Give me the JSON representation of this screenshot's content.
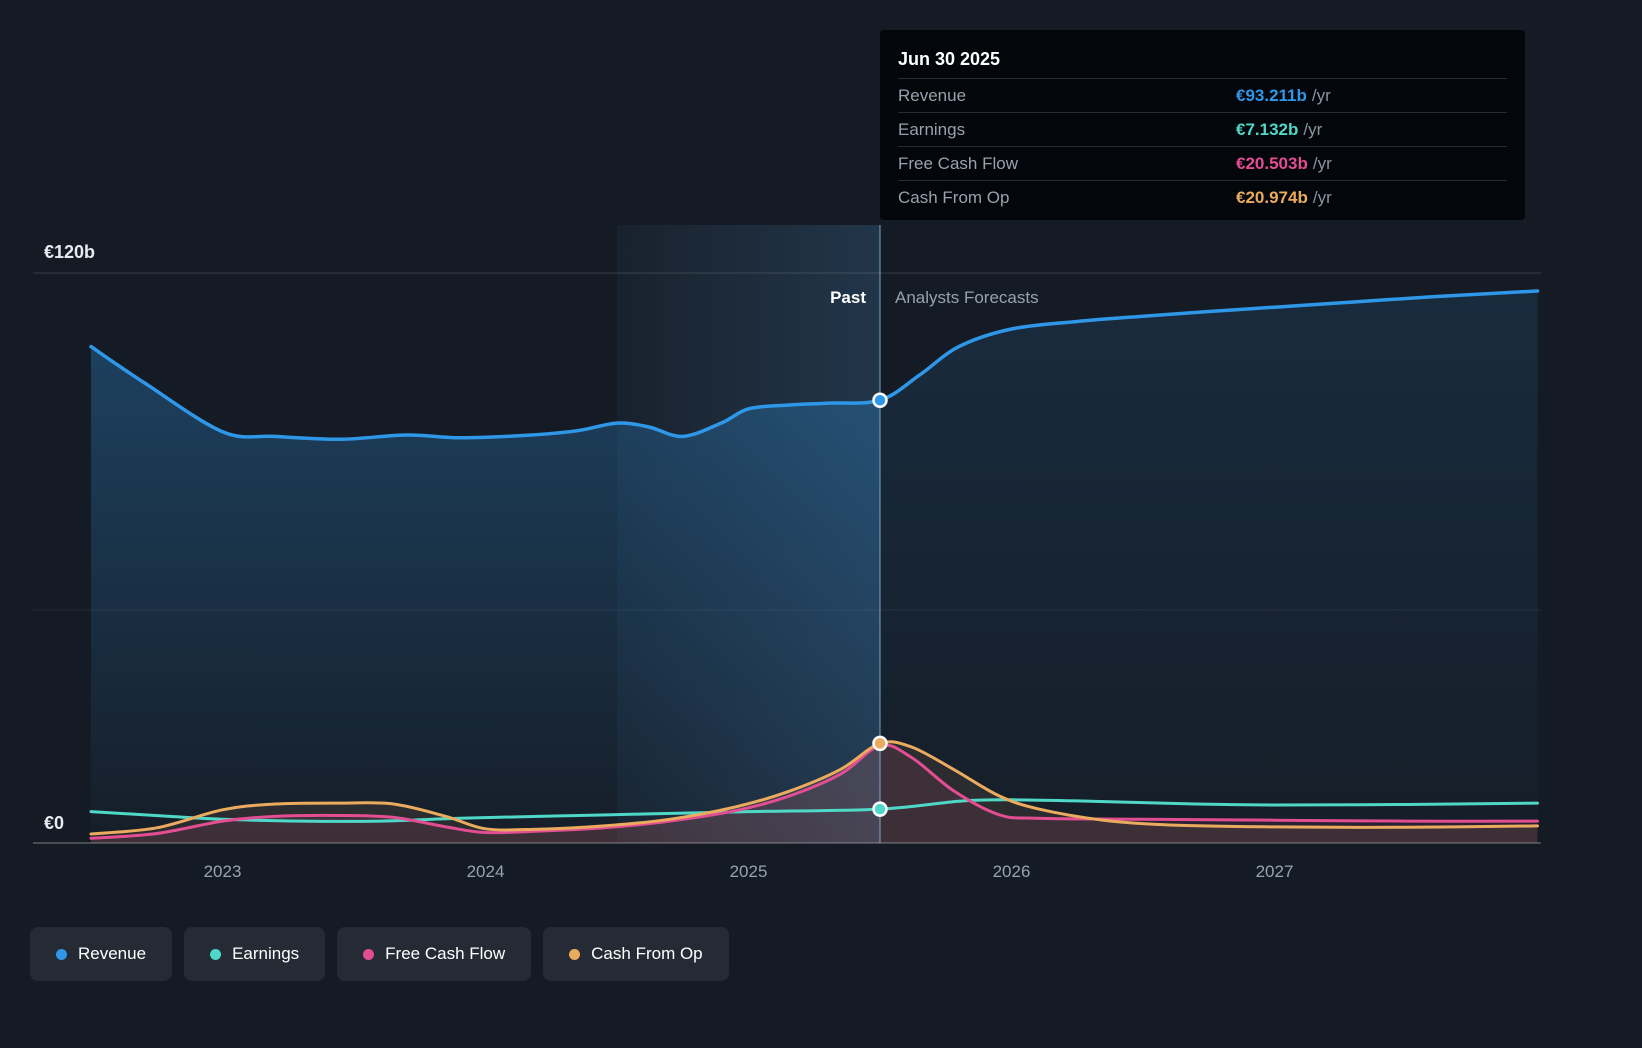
{
  "labels": {
    "y_max": "€120b",
    "y_zero": "€0",
    "past": "Past",
    "forecast": "Analysts Forecasts"
  },
  "x_axis": [
    "2023",
    "2024",
    "2025",
    "2026",
    "2027"
  ],
  "tooltip": {
    "date": "Jun 30 2025",
    "rows": [
      {
        "label": "Revenue",
        "value": "€93.211b",
        "suffix": "/yr",
        "color": "#2f97e8"
      },
      {
        "label": "Earnings",
        "value": "€7.132b",
        "suffix": "/yr",
        "color": "#4fd8c7"
      },
      {
        "label": "Free Cash Flow",
        "value": "€20.503b",
        "suffix": "/yr",
        "color": "#e34e92"
      },
      {
        "label": "Cash From Op",
        "value": "€20.974b",
        "suffix": "/yr",
        "color": "#ebab5e"
      }
    ]
  },
  "legend": [
    {
      "label": "Revenue",
      "color": "#2f97e8"
    },
    {
      "label": "Earnings",
      "color": "#4fd8c7"
    },
    {
      "label": "Free Cash Flow",
      "color": "#e34e92"
    },
    {
      "label": "Cash From Op",
      "color": "#ebab5e"
    }
  ],
  "chart_data": {
    "type": "area",
    "title": "Past performance and Analysts Forecasts (€ billions per year)",
    "x_unit": "year",
    "x_range": [
      2022.27,
      2028.0
    ],
    "y_range": [
      0,
      120
    ],
    "y_tick_labels": [
      "€120b",
      "€0"
    ],
    "grid": true,
    "divider": {
      "x": 2025.5,
      "date": "Jun 30 2025",
      "past_label": "Past",
      "forecast_label": "Analysts Forecasts",
      "highlight_band_start": 2024.5
    },
    "series": [
      {
        "name": "Revenue",
        "color": "#2f97e8",
        "unit": "€b/yr",
        "points": [
          [
            2022.5,
            104.5
          ],
          [
            2022.7,
            97.0
          ],
          [
            2023.0,
            86.6
          ],
          [
            2023.2,
            85.6
          ],
          [
            2023.45,
            85.0
          ],
          [
            2023.7,
            85.9
          ],
          [
            2023.9,
            85.3
          ],
          [
            2024.15,
            85.8
          ],
          [
            2024.35,
            86.8
          ],
          [
            2024.5,
            88.4
          ],
          [
            2024.62,
            87.6
          ],
          [
            2024.75,
            85.6
          ],
          [
            2024.9,
            88.5
          ],
          [
            2025.0,
            91.4
          ],
          [
            2025.15,
            92.2
          ],
          [
            2025.3,
            92.6
          ],
          [
            2025.5,
            93.211
          ],
          [
            2025.65,
            98.5
          ],
          [
            2025.8,
            104.5
          ],
          [
            2026.0,
            108.2
          ],
          [
            2026.25,
            109.8
          ],
          [
            2026.5,
            110.9
          ],
          [
            2026.75,
            111.9
          ],
          [
            2027.0,
            112.8
          ],
          [
            2027.3,
            113.9
          ],
          [
            2027.6,
            115.0
          ],
          [
            2028.0,
            116.2
          ]
        ]
      },
      {
        "name": "Earnings",
        "color": "#4fd8c7",
        "unit": "€b/yr",
        "points": [
          [
            2022.5,
            6.6
          ],
          [
            2022.8,
            5.6
          ],
          [
            2023.0,
            5.0
          ],
          [
            2023.3,
            4.6
          ],
          [
            2023.6,
            4.6
          ],
          [
            2023.9,
            5.2
          ],
          [
            2024.2,
            5.6
          ],
          [
            2024.6,
            6.1
          ],
          [
            2025.0,
            6.6
          ],
          [
            2025.5,
            7.132
          ],
          [
            2025.8,
            8.8
          ],
          [
            2026.0,
            9.1
          ],
          [
            2026.3,
            8.8
          ],
          [
            2026.7,
            8.2
          ],
          [
            2027.0,
            8.0
          ],
          [
            2027.5,
            8.1
          ],
          [
            2028.0,
            8.4
          ]
        ]
      },
      {
        "name": "Free Cash Flow",
        "color": "#e34e92",
        "unit": "€b/yr",
        "points": [
          [
            2022.5,
            1.0
          ],
          [
            2022.75,
            2.0
          ],
          [
            2023.0,
            4.6
          ],
          [
            2023.2,
            5.6
          ],
          [
            2023.45,
            5.8
          ],
          [
            2023.65,
            5.4
          ],
          [
            2023.85,
            3.4
          ],
          [
            2024.0,
            2.2
          ],
          [
            2024.2,
            2.5
          ],
          [
            2024.45,
            3.2
          ],
          [
            2024.7,
            4.6
          ],
          [
            2024.95,
            6.8
          ],
          [
            2025.15,
            9.8
          ],
          [
            2025.35,
            14.5
          ],
          [
            2025.5,
            20.503
          ],
          [
            2025.62,
            18.0
          ],
          [
            2025.78,
            11.0
          ],
          [
            2025.95,
            6.0
          ],
          [
            2026.1,
            5.2
          ],
          [
            2026.5,
            5.0
          ],
          [
            2027.0,
            4.8
          ],
          [
            2027.5,
            4.6
          ],
          [
            2028.0,
            4.6
          ]
        ]
      },
      {
        "name": "Cash From Op",
        "color": "#ebab5e",
        "unit": "€b/yr",
        "points": [
          [
            2022.5,
            1.9
          ],
          [
            2022.75,
            3.2
          ],
          [
            2023.0,
            7.0
          ],
          [
            2023.2,
            8.2
          ],
          [
            2023.45,
            8.4
          ],
          [
            2023.65,
            8.2
          ],
          [
            2023.85,
            5.6
          ],
          [
            2024.0,
            3.0
          ],
          [
            2024.2,
            2.9
          ],
          [
            2024.45,
            3.6
          ],
          [
            2024.7,
            5.0
          ],
          [
            2024.95,
            7.6
          ],
          [
            2025.15,
            10.8
          ],
          [
            2025.35,
            15.5
          ],
          [
            2025.5,
            20.974
          ],
          [
            2025.62,
            20.2
          ],
          [
            2025.78,
            15.5
          ],
          [
            2025.95,
            10.0
          ],
          [
            2026.1,
            7.2
          ],
          [
            2026.35,
            4.8
          ],
          [
            2026.6,
            3.8
          ],
          [
            2027.0,
            3.4
          ],
          [
            2027.5,
            3.3
          ],
          [
            2028.0,
            3.6
          ]
        ]
      }
    ],
    "markers_at_divider": [
      {
        "series": "Revenue",
        "value": 93.211
      },
      {
        "series": "Cash From Op",
        "value": 20.974
      },
      {
        "series": "Earnings",
        "value": 7.132
      }
    ]
  }
}
